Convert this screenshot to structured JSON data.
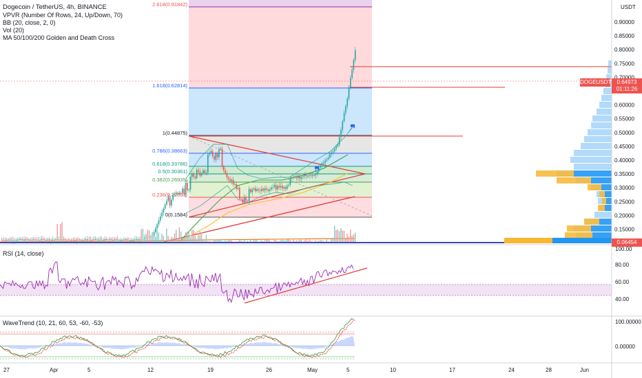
{
  "header": {
    "title": "Dogecoin / TetherUS, 4h, BINANCE",
    "indicators": [
      "VPVR (Number Of Rows, 24, Up/Down, 70)",
      "BB (20, close, 2, 0)",
      "Vol (20)",
      "MA 50/100/200 Golden and Death Cross"
    ],
    "currency": "USDT"
  },
  "price_axis": {
    "labels": [
      "0.90000",
      "0.85000",
      "0.80000",
      "0.75000",
      "0.70000",
      "0.65000",
      "0.60000",
      "0.55000",
      "0.50000",
      "0.45000",
      "0.40000",
      "0.35000",
      "0.30000",
      "0.25000",
      "0.20000",
      "0.15000",
      "0.10000"
    ],
    "symbol_badge": "DOGEUSDT",
    "last_price": "0.64973",
    "countdown": "01:11:26",
    "low_badge": "0.06454"
  },
  "fib_levels": [
    {
      "label": "2.618(0.91842)",
      "color": "#ef5350"
    },
    {
      "label": "1.618(0.62814)",
      "color": "#2962ff"
    },
    {
      "label": "1(0.44875)",
      "color": "#131722"
    },
    {
      "label": "0.786(0.38663)",
      "color": "#2962ff"
    },
    {
      "label": "0.618(0.33786)",
      "color": "#089981"
    },
    {
      "label": "0.5(0.30361)",
      "color": "#089981"
    },
    {
      "label": "0.382(0.26935)",
      "color": "#43a047"
    },
    {
      "label": "0.236(0.22693)",
      "color": "#ef5350"
    },
    {
      "label": "0(0.1584)",
      "color": "#131722"
    }
  ],
  "rsi": {
    "label": "RSI (14, close)",
    "axis": [
      "100.00",
      "80.00",
      "60.00",
      "40.00"
    ]
  },
  "wavetrend": {
    "label": "WaveTrend (10, 21, 60, 53, -60, -53)",
    "axis": [
      "100.00000",
      "0.00000"
    ]
  },
  "time_axis": [
    "27",
    "Apr",
    "5",
    "12",
    "19",
    "26",
    "May",
    "5",
    "10",
    "17",
    "24",
    "28",
    "Jun"
  ],
  "colors": {
    "up": "#26a69a",
    "down": "#ef5350",
    "rsi": "#9c27b0",
    "fib_red": "#ef5350",
    "fib_blue": "#2962ff",
    "trend": "#e53935",
    "vp_up": "#2196f3",
    "vp_down": "#f7b733"
  }
}
